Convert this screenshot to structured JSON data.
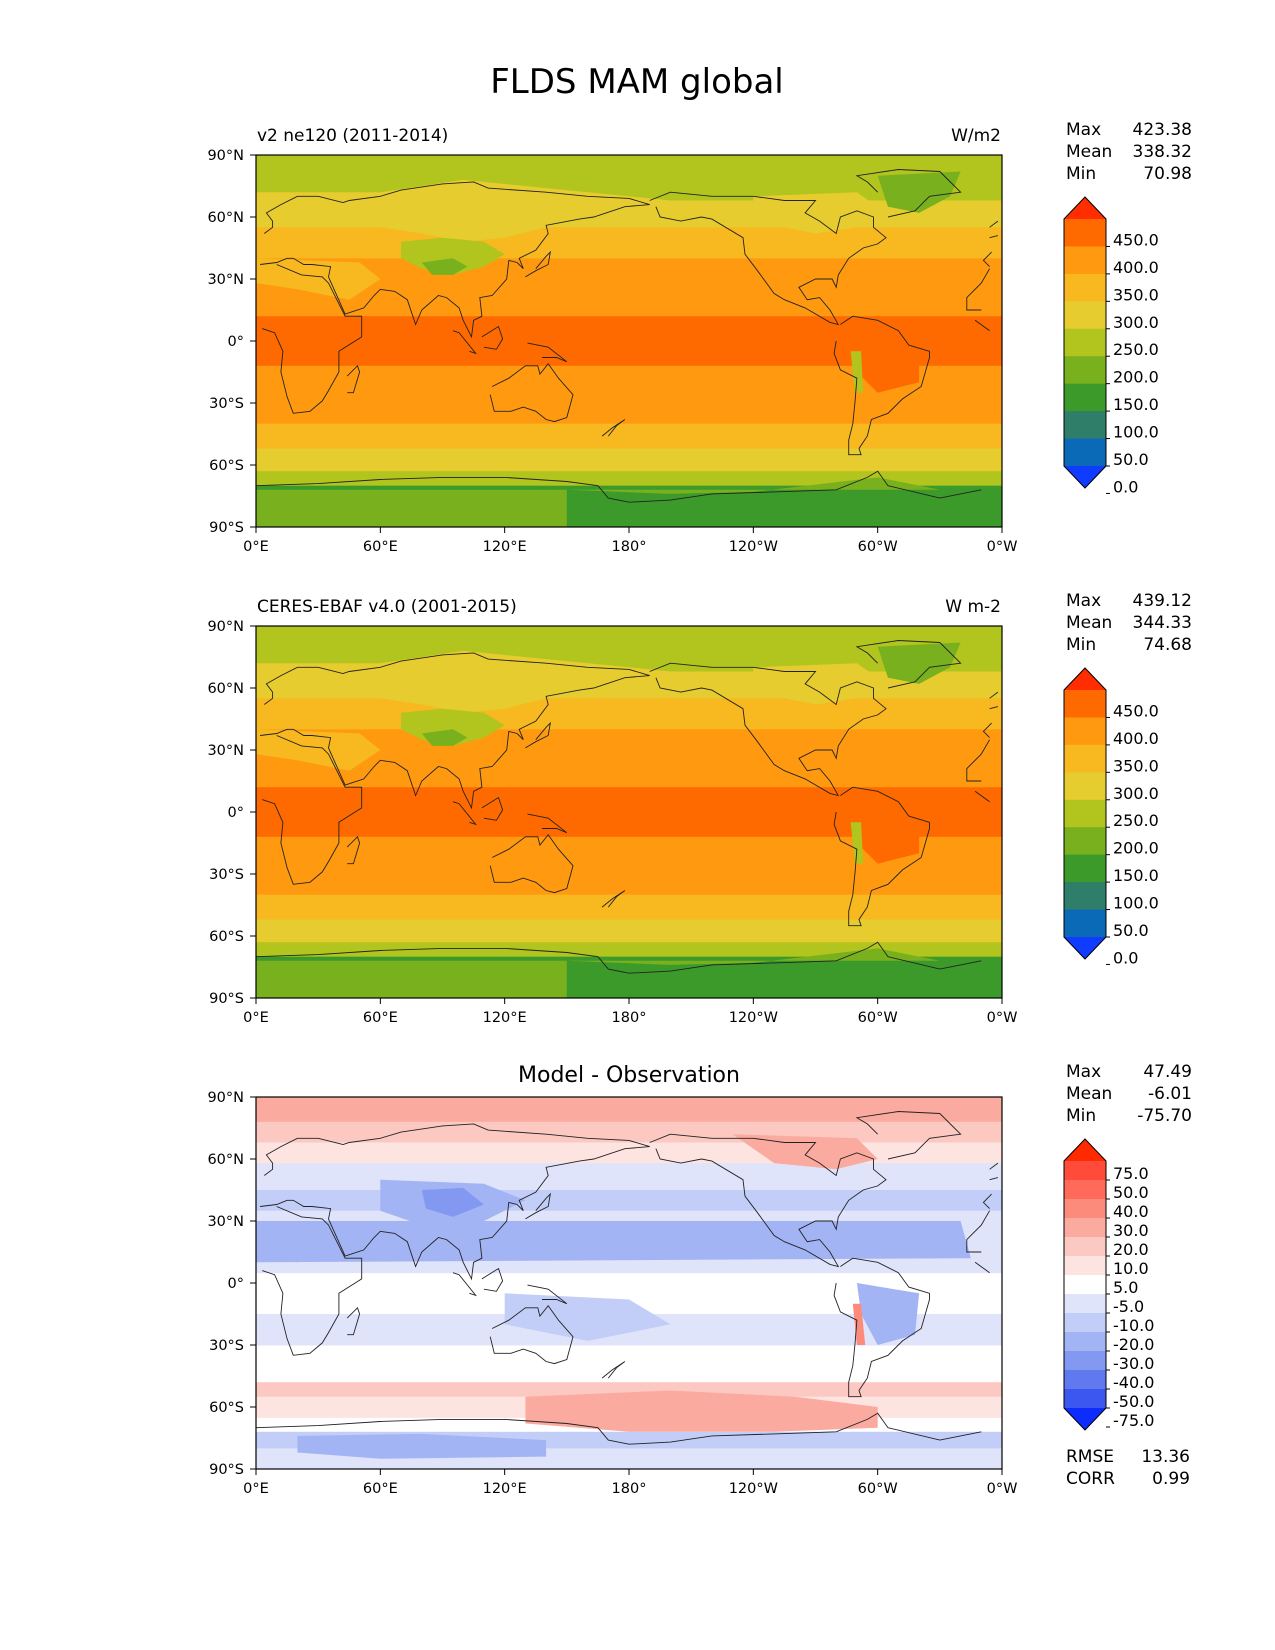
{
  "title": "FLDS MAM global",
  "lat_labels": [
    "90°N",
    "60°N",
    "30°N",
    "0°",
    "30°S",
    "60°S",
    "90°S"
  ],
  "lon_labels": [
    "0°E",
    "60°E",
    "120°E",
    "180°",
    "120°W",
    "60°W",
    "0°W"
  ],
  "panels": [
    {
      "id": "model",
      "left_title": "v2 ne120 (2011-2014)",
      "center_title": "",
      "units": "W/m2",
      "stats": {
        "max_label": "Max",
        "max": "423.38",
        "mean_label": "Mean",
        "mean": "338.32",
        "min_label": "Min",
        "min": "70.98"
      },
      "colorbar": {
        "ticks": [
          "450.0",
          "400.0",
          "350.0",
          "300.0",
          "250.0",
          "200.0",
          "150.0",
          "100.0",
          "50.0",
          "0.0"
        ],
        "colors": [
          "#ff2d00",
          "#ff6a00",
          "#ff9a10",
          "#f8b820",
          "#e6cc2e",
          "#b2c41e",
          "#78b01e",
          "#3c9a2a",
          "#2e7e6a",
          "#0a6ab8",
          "#0f3cff"
        ]
      },
      "field": "absolute"
    },
    {
      "id": "obs",
      "left_title": "CERES-EBAF v4.0 (2001-2015)",
      "center_title": "",
      "units": "W m-2",
      "stats": {
        "max_label": "Max",
        "max": "439.12",
        "mean_label": "Mean",
        "mean": "344.33",
        "min_label": "Min",
        "min": "74.68"
      },
      "colorbar": {
        "ticks": [
          "450.0",
          "400.0",
          "350.0",
          "300.0",
          "250.0",
          "200.0",
          "150.0",
          "100.0",
          "50.0",
          "0.0"
        ],
        "colors": [
          "#ff2d00",
          "#ff6a00",
          "#ff9a10",
          "#f8b820",
          "#e6cc2e",
          "#b2c41e",
          "#78b01e",
          "#3c9a2a",
          "#2e7e6a",
          "#0a6ab8",
          "#0f3cff"
        ]
      },
      "field": "absolute"
    },
    {
      "id": "diff",
      "left_title": "",
      "center_title": "Model - Observation",
      "units": "",
      "stats": {
        "max_label": "Max",
        "max": "47.49",
        "mean_label": "Mean",
        "mean": "-6.01",
        "min_label": "Min",
        "min": "-75.70"
      },
      "colorbar": {
        "ticks": [
          "75.0",
          "50.0",
          "40.0",
          "30.0",
          "20.0",
          "10.0",
          "5.0",
          "-5.0",
          "-10.0",
          "-20.0",
          "-30.0",
          "-40.0",
          "-50.0",
          "-75.0"
        ],
        "colors": [
          "#ff2a00",
          "#ff4b3a",
          "#ff6a5a",
          "#fd8b7c",
          "#fbaa9f",
          "#fcc8c2",
          "#fde4e0",
          "#ffffff",
          "#dfe4fb",
          "#c2cdf8",
          "#a3b4f5",
          "#8399f1",
          "#6079ee",
          "#3b57ef",
          "#0f2cff"
        ]
      },
      "field": "difference",
      "extra": {
        "rmse_label": "RMSE",
        "rmse": "13.36",
        "corr_label": "CORR",
        "corr": "0.99"
      }
    }
  ]
}
